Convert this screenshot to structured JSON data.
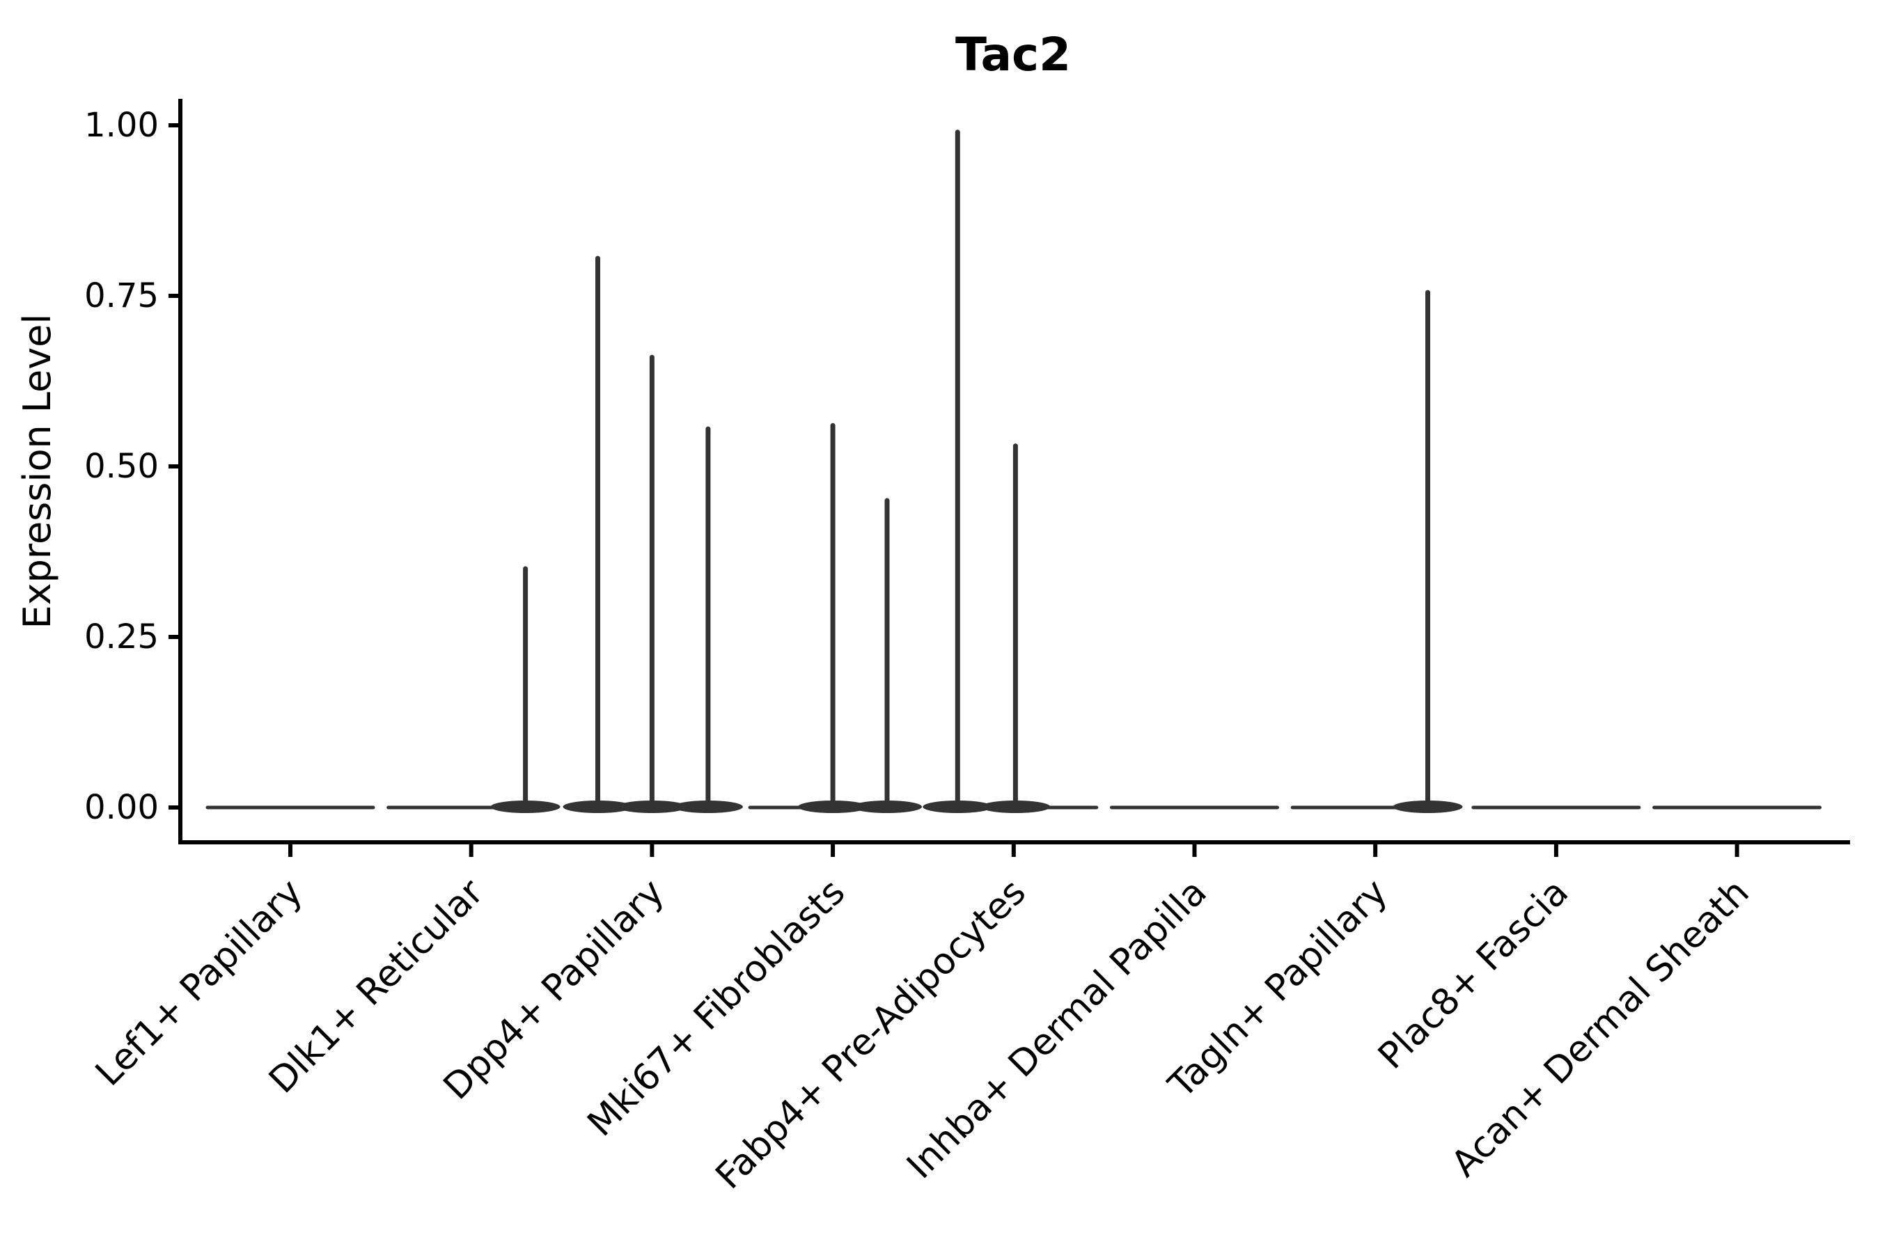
{
  "chart_data": {
    "type": "violin",
    "title": "Tac2",
    "xlabel": "",
    "ylabel": "Expression Level",
    "ylim": [
      -0.05,
      1.04
    ],
    "grid": false,
    "legend": null,
    "ytick_labels": [
      "0.00",
      "0.25",
      "0.50",
      "0.75",
      "1.00"
    ],
    "ytick_values": [
      0.0,
      0.25,
      0.5,
      0.75,
      1.0
    ],
    "categories": [
      "Lef1+ Papillary",
      "Dlk1+ Reticular",
      "Dpp4+ Papillary",
      "Mki67+ Fibroblasts",
      "Fabp4+ Pre-Adipocytes",
      "Inhba+ Dermal Papilla",
      "Tagln+ Papillary",
      "Plac8+ Fascia",
      "Acan+ Dermal Sheath"
    ],
    "violins": [
      {
        "category": "Lef1+ Papillary",
        "baseline_value": 0,
        "spikes": []
      },
      {
        "category": "Dlk1+ Reticular",
        "baseline_value": 0,
        "spikes": [
          {
            "offset": 0.3,
            "value": 0.35
          }
        ]
      },
      {
        "category": "Dpp4+ Papillary",
        "baseline_value": 0,
        "spikes": [
          {
            "offset": -0.3,
            "value": 0.805
          },
          {
            "offset": 0.0,
            "value": 0.66
          },
          {
            "offset": 0.31,
            "value": 0.555
          }
        ]
      },
      {
        "category": "Mki67+ Fibroblasts",
        "baseline_value": 0,
        "spikes": [
          {
            "offset": 0.0,
            "value": 0.56
          },
          {
            "offset": 0.3,
            "value": 0.45
          }
        ]
      },
      {
        "category": "Fabp4+ Pre-Adipocytes",
        "baseline_value": 0,
        "spikes": [
          {
            "offset": -0.31,
            "value": 0.99
          },
          {
            "offset": 0.01,
            "value": 0.53
          }
        ]
      },
      {
        "category": "Inhba+ Dermal Papilla",
        "baseline_value": 0,
        "spikes": []
      },
      {
        "category": "Tagln+ Papillary",
        "baseline_value": 0,
        "spikes": [
          {
            "offset": 0.29,
            "value": 0.755
          }
        ]
      },
      {
        "category": "Plac8+ Fascia",
        "baseline_value": 0,
        "spikes": []
      },
      {
        "category": "Acan+ Dermal Sheath",
        "baseline_value": 0,
        "spikes": []
      }
    ],
    "colors": {
      "violin": "#333333",
      "axis": "#000000",
      "background": "#ffffff"
    }
  }
}
